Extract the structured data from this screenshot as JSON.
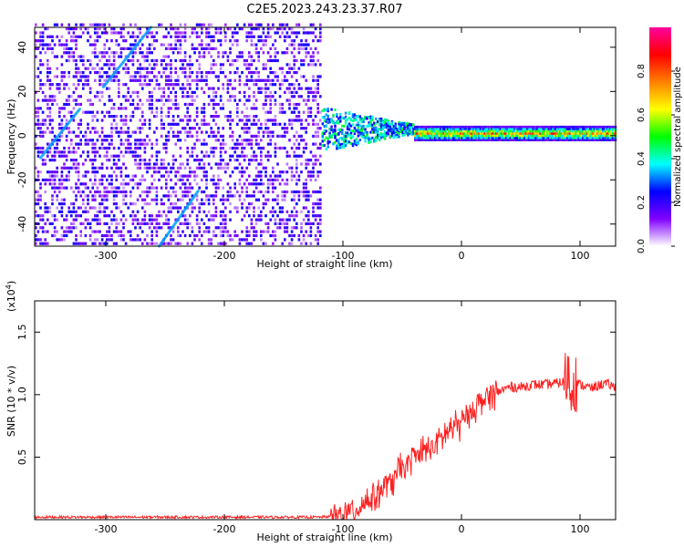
{
  "chart_data": [
    {
      "type": "heatmap",
      "title": "C2E5.2023.243.23.37.R07",
      "xlabel": "Height of straight line (km)",
      "ylabel": "Frequency (Hz)",
      "xlim": [
        -360,
        130
      ],
      "ylim": [
        -50,
        49
      ],
      "xticks": [
        -300,
        -200,
        -100,
        0,
        100
      ],
      "yticks": [
        -40,
        -20,
        0,
        20,
        40
      ],
      "colorbar": {
        "label": "Normalized spectral amplitude",
        "range": [
          0,
          1
        ],
        "ticks": [
          "0.0",
          "0.2",
          "0.4",
          "0.6",
          "0.8"
        ],
        "colormap": [
          "#ffffff",
          "#8000ff",
          "#0000ff",
          "#00ffff",
          "#00ff00",
          "#ffff00",
          "#ff8000",
          "#ff0000",
          "#ff00a0"
        ]
      },
      "regions": {
        "noise_band": {
          "x": [
            -360,
            -118
          ],
          "y": [
            -50,
            49
          ],
          "level_range": [
            0.05,
            0.25
          ]
        },
        "transition": {
          "x": [
            -118,
            -40
          ],
          "center_hz": 2,
          "level_range": [
            0.2,
            0.5
          ]
        },
        "carrier": {
          "x": [
            -40,
            130
          ],
          "center_hz": 1,
          "level_range": [
            0.45,
            0.9
          ]
        }
      },
      "aliased_lines": [
        {
          "from": [
            -355,
            -10
          ],
          "to": [
            -322,
            12
          ]
        },
        {
          "from": [
            -302,
            22
          ],
          "to": [
            -262,
            49
          ]
        },
        {
          "from": [
            -255,
            -50
          ],
          "to": [
            -222,
            -25
          ]
        }
      ]
    },
    {
      "type": "line",
      "xlabel": "Height of straight line (km)",
      "ylabel": "SNR (10 * v/v)",
      "yscale_label": "(x10",
      "yscale_exponent": "4",
      "yscale_suffix": ")",
      "xlim": [
        -360,
        130
      ],
      "ylim": [
        0,
        1.75
      ],
      "xticks": [
        -300,
        -200,
        -100,
        0,
        100
      ],
      "yticks": [
        "0.5",
        "1.0",
        "1.5"
      ],
      "series": [
        {
          "color": "#ff2020",
          "x": [
            -360,
            -300,
            -250,
            -200,
            -150,
            -120,
            -110,
            -100,
            -90,
            -80,
            -70,
            -60,
            -50,
            -40,
            -30,
            -20,
            -10,
            0,
            10,
            20,
            30,
            40,
            50,
            60,
            70,
            80,
            85,
            88,
            90,
            92,
            94,
            96,
            100,
            110,
            120,
            130
          ],
          "y": [
            0.02,
            0.02,
            0.02,
            0.02,
            0.02,
            0.02,
            0.025,
            0.04,
            0.08,
            0.15,
            0.22,
            0.3,
            0.4,
            0.5,
            0.55,
            0.62,
            0.72,
            0.78,
            0.88,
            0.98,
            1.02,
            1.06,
            1.06,
            1.08,
            1.08,
            1.09,
            1.1,
            1.12,
            1.2,
            1.0,
            1.15,
            1.1,
            1.08,
            1.05,
            1.09,
            1.06
          ]
        }
      ],
      "noise_amplitude": 0.12
    }
  ]
}
